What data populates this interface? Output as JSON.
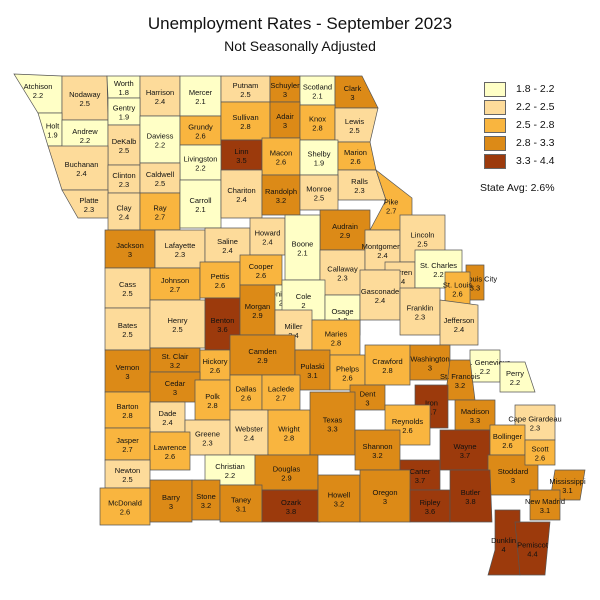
{
  "header": {
    "title": "Unemployment Rates - September 2023",
    "subtitle": "Not Seasonally Adjusted"
  },
  "legend": {
    "items": [
      {
        "label": "1.8 - 2.2",
        "color": "#ffffc6"
      },
      {
        "label": "2.2 - 2.5",
        "color": "#fddb9a"
      },
      {
        "label": "2.5 - 2.8",
        "color": "#f9b53f"
      },
      {
        "label": "2.8 - 3.3",
        "color": "#dc8a17"
      },
      {
        "label": "3.3 - 4.4",
        "color": "#9c3a0c"
      }
    ]
  },
  "state_avg": "State Avg: 2.6%",
  "counties": [
    {
      "name": "Atchison",
      "value": "2.2"
    },
    {
      "name": "Nodaway",
      "value": "2.5"
    },
    {
      "name": "Worth",
      "value": "1.8"
    },
    {
      "name": "Harrison",
      "value": "2.4"
    },
    {
      "name": "Mercer",
      "value": "2.1"
    },
    {
      "name": "Putnam",
      "value": "2.5"
    },
    {
      "name": "Schuyler",
      "value": "3"
    },
    {
      "name": "Scotland",
      "value": "2.1"
    },
    {
      "name": "Clark",
      "value": "3"
    },
    {
      "name": "Holt",
      "value": "1.9"
    },
    {
      "name": "Andrew",
      "value": "2.2"
    },
    {
      "name": "Gentry",
      "value": "1.9"
    },
    {
      "name": "DeKalb",
      "value": "2.5"
    },
    {
      "name": "Daviess",
      "value": "2.2"
    },
    {
      "name": "Grundy",
      "value": "2.6"
    },
    {
      "name": "Sullivan",
      "value": "2.8"
    },
    {
      "name": "Adair",
      "value": "3"
    },
    {
      "name": "Knox",
      "value": "2.8"
    },
    {
      "name": "Lewis",
      "value": "2.5"
    },
    {
      "name": "Linn",
      "value": "3.5"
    },
    {
      "name": "Livingston",
      "value": "2.2"
    },
    {
      "name": "Macon",
      "value": "2.6"
    },
    {
      "name": "Shelby",
      "value": "1.9"
    },
    {
      "name": "Marion",
      "value": "2.6"
    },
    {
      "name": "Buchanan",
      "value": "2.4"
    },
    {
      "name": "Clinton",
      "value": "2.3"
    },
    {
      "name": "Caldwell",
      "value": "2.5"
    },
    {
      "name": "Ralls",
      "value": "2.3"
    },
    {
      "name": "Platte",
      "value": "2.3"
    },
    {
      "name": "Clay",
      "value": "2.4"
    },
    {
      "name": "Ray",
      "value": "2.7"
    },
    {
      "name": "Carroll",
      "value": "2.1"
    },
    {
      "name": "Chariton",
      "value": "2.4"
    },
    {
      "name": "Randolph",
      "value": "3.2"
    },
    {
      "name": "Monroe",
      "value": "2.5"
    },
    {
      "name": "Pike",
      "value": "2.7"
    },
    {
      "name": "Audrain",
      "value": "2.9"
    },
    {
      "name": "Jackson",
      "value": "3"
    },
    {
      "name": "Lafayette",
      "value": "2.3"
    },
    {
      "name": "Saline",
      "value": "2.4"
    },
    {
      "name": "Howard",
      "value": "2.4"
    },
    {
      "name": "Boone",
      "value": "2.1"
    },
    {
      "name": "Callaway",
      "value": "2.3"
    },
    {
      "name": "Montgomery",
      "value": "2.4"
    },
    {
      "name": "Lincoln",
      "value": "2.5"
    },
    {
      "name": "Warren",
      "value": "2.4"
    },
    {
      "name": "St. Charles",
      "value": "2.2"
    },
    {
      "name": "St. Louis City",
      "value": "3.3"
    },
    {
      "name": "St. Louis",
      "value": "2.6"
    },
    {
      "name": "Cass",
      "value": "2.5"
    },
    {
      "name": "Johnson",
      "value": "2.7"
    },
    {
      "name": "Pettis",
      "value": "2.6"
    },
    {
      "name": "Cooper",
      "value": "2.6"
    },
    {
      "name": "Moniteau",
      "value": "2"
    },
    {
      "name": "Cole",
      "value": "2"
    },
    {
      "name": "Osage",
      "value": "1.9"
    },
    {
      "name": "Gasconade",
      "value": "2.4"
    },
    {
      "name": "Franklin",
      "value": "2.3"
    },
    {
      "name": "Jefferson",
      "value": "2.4"
    },
    {
      "name": "Bates",
      "value": "2.5"
    },
    {
      "name": "Henry",
      "value": "2.5"
    },
    {
      "name": "Benton",
      "value": "3.6"
    },
    {
      "name": "Morgan",
      "value": "2.9"
    },
    {
      "name": "Miller",
      "value": "2.4"
    },
    {
      "name": "Maries",
      "value": "2.8"
    },
    {
      "name": "St. Clair",
      "value": "3.2"
    },
    {
      "name": "Hickory",
      "value": "2.6"
    },
    {
      "name": "Camden",
      "value": "2.9"
    },
    {
      "name": "Pulaski",
      "value": "3.1"
    },
    {
      "name": "Phelps",
      "value": "2.6"
    },
    {
      "name": "Crawford",
      "value": "2.8"
    },
    {
      "name": "Washington",
      "value": "3"
    },
    {
      "name": "Ste. Genevieve",
      "value": "2.2"
    },
    {
      "name": "Perry",
      "value": "2.2"
    },
    {
      "name": "St. Francois",
      "value": "3.2"
    },
    {
      "name": "Vernon",
      "value": "3"
    },
    {
      "name": "Cedar",
      "value": "3"
    },
    {
      "name": "Polk",
      "value": "2.8"
    },
    {
      "name": "Dallas",
      "value": "2.6"
    },
    {
      "name": "Laclede",
      "value": "2.7"
    },
    {
      "name": "Dent",
      "value": "3"
    },
    {
      "name": "Iron",
      "value": "3.7"
    },
    {
      "name": "Madison",
      "value": "3.3"
    },
    {
      "name": "Cape Girardeau",
      "value": "2.3"
    },
    {
      "name": "Barton",
      "value": "2.8"
    },
    {
      "name": "Dade",
      "value": "2.4"
    },
    {
      "name": "Greene",
      "value": "2.3"
    },
    {
      "name": "Webster",
      "value": "2.4"
    },
    {
      "name": "Wright",
      "value": "2.8"
    },
    {
      "name": "Texas",
      "value": "3.3"
    },
    {
      "name": "Reynolds",
      "value": "2.6"
    },
    {
      "name": "Wayne",
      "value": "3.7"
    },
    {
      "name": "Bollinger",
      "value": "2.6"
    },
    {
      "name": "Jasper",
      "value": "2.7"
    },
    {
      "name": "Lawrence",
      "value": "2.6"
    },
    {
      "name": "Christian",
      "value": "2.2"
    },
    {
      "name": "Douglas",
      "value": "2.9"
    },
    {
      "name": "Shannon",
      "value": "3.2"
    },
    {
      "name": "Carter",
      "value": "3.7"
    },
    {
      "name": "Stoddard",
      "value": "3"
    },
    {
      "name": "Scott",
      "value": "2.6"
    },
    {
      "name": "Newton",
      "value": "2.5"
    },
    {
      "name": "Mississippi",
      "value": "3.1"
    },
    {
      "name": "McDonald",
      "value": "2.6"
    },
    {
      "name": "Barry",
      "value": "3"
    },
    {
      "name": "Stone",
      "value": "3.2"
    },
    {
      "name": "Taney",
      "value": "3.1"
    },
    {
      "name": "Ozark",
      "value": "3.8"
    },
    {
      "name": "Howell",
      "value": "3.2"
    },
    {
      "name": "Oregon",
      "value": "3"
    },
    {
      "name": "Ripley",
      "value": "3.6"
    },
    {
      "name": "Butler",
      "value": "3.8"
    },
    {
      "name": "New Madrid",
      "value": "3.1"
    },
    {
      "name": "Dunklin",
      "value": "4"
    },
    {
      "name": "Pemiscot",
      "value": "4.4"
    }
  ]
}
